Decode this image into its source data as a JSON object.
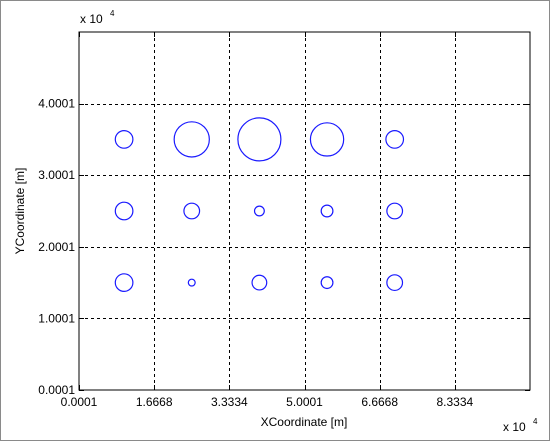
{
  "chart_data": {
    "type": "scatter",
    "marker": "open-circle",
    "xlabel": "XCoordinate [m]",
    "ylabel": "YCoordinate [m]",
    "x_multiplier": {
      "base": "x 10",
      "exponent": "4"
    },
    "y_multiplier": {
      "base": "x 10",
      "exponent": "4"
    },
    "xlim": [
      0.0001,
      10.0001
    ],
    "ylim": [
      0.0001,
      5.0001
    ],
    "x_ticks": [
      0.0001,
      1.6668,
      3.3334,
      5.0001,
      6.6668,
      8.3334
    ],
    "x_tick_labels": [
      "0.0001",
      "1.6668",
      "3.3334",
      "5.0001",
      "6.6668",
      "8.3334"
    ],
    "y_ticks": [
      0.0001,
      1.0001,
      2.0001,
      3.0001,
      4.0001
    ],
    "y_tick_labels": [
      "0.0001",
      "1.0001",
      "2.0001",
      "3.0001",
      "4.0001"
    ],
    "grid": true,
    "grid_style": "dashed",
    "marker_color": "#1a1aff",
    "points": [
      {
        "x": 1.0,
        "y": 3.5,
        "size": 9
      },
      {
        "x": 2.5,
        "y": 3.5,
        "size": 18
      },
      {
        "x": 4.0,
        "y": 3.5,
        "size": 22
      },
      {
        "x": 5.5,
        "y": 3.5,
        "size": 17
      },
      {
        "x": 7.0,
        "y": 3.5,
        "size": 9
      },
      {
        "x": 1.0,
        "y": 2.5,
        "size": 9
      },
      {
        "x": 2.5,
        "y": 2.5,
        "size": 8
      },
      {
        "x": 4.0,
        "y": 2.5,
        "size": 5
      },
      {
        "x": 5.5,
        "y": 2.5,
        "size": 6
      },
      {
        "x": 7.0,
        "y": 2.5,
        "size": 8
      },
      {
        "x": 1.0,
        "y": 1.5,
        "size": 9
      },
      {
        "x": 2.5,
        "y": 1.5,
        "size": 3.5
      },
      {
        "x": 4.0,
        "y": 1.5,
        "size": 7.5
      },
      {
        "x": 5.5,
        "y": 1.5,
        "size": 6
      },
      {
        "x": 7.0,
        "y": 1.5,
        "size": 8
      }
    ]
  }
}
